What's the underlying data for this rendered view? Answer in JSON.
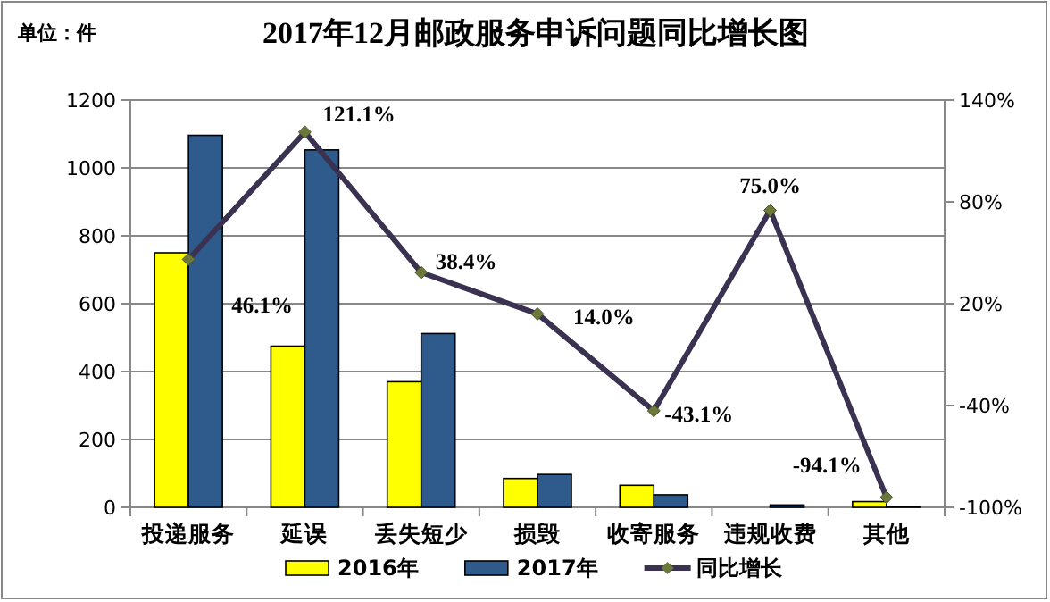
{
  "chart_data": {
    "type": "bar",
    "title": "2017年12月邮政服务申诉问题同比增长图",
    "categories": [
      "投递服务",
      "延误",
      "丢失短少",
      "损毁",
      "收寄服务",
      "违规收费",
      "其他"
    ],
    "series": [
      {
        "name": "2016年",
        "color": "#ffff00",
        "values": [
          750,
          475,
          370,
          85,
          65,
          null,
          17
        ]
      },
      {
        "name": "2017年",
        "color": "#2e5b8c",
        "values": [
          1096,
          1053,
          512,
          97,
          37,
          7,
          1
        ]
      },
      {
        "name": "同比增长",
        "type": "line",
        "axis": "y2",
        "color": "#3b3150",
        "marker": "diamond",
        "values": [
          46.1,
          121.1,
          38.4,
          14.0,
          -43.1,
          75.0,
          -94.1
        ],
        "value_labels": [
          "46.1%",
          "121.1%",
          "38.4%",
          "14.0%",
          "-43.1%",
          "75.0%",
          "-94.1%"
        ]
      }
    ],
    "ylim": [
      0,
      1200
    ],
    "yticks": [
      0,
      200,
      400,
      600,
      800,
      1000,
      1200
    ],
    "y2lim": [
      -100,
      140
    ],
    "y2ticks": [
      {
        "value": -100,
        "label": "-100%"
      },
      {
        "value": -40,
        "label": "-40%"
      },
      {
        "value": 20,
        "label": "20%"
      },
      {
        "value": 80,
        "label": "80%"
      },
      {
        "value": 140,
        "label": "140%"
      }
    ],
    "grid": "y",
    "legend": "bottom",
    "annotations": [
      "单位：件"
    ]
  }
}
